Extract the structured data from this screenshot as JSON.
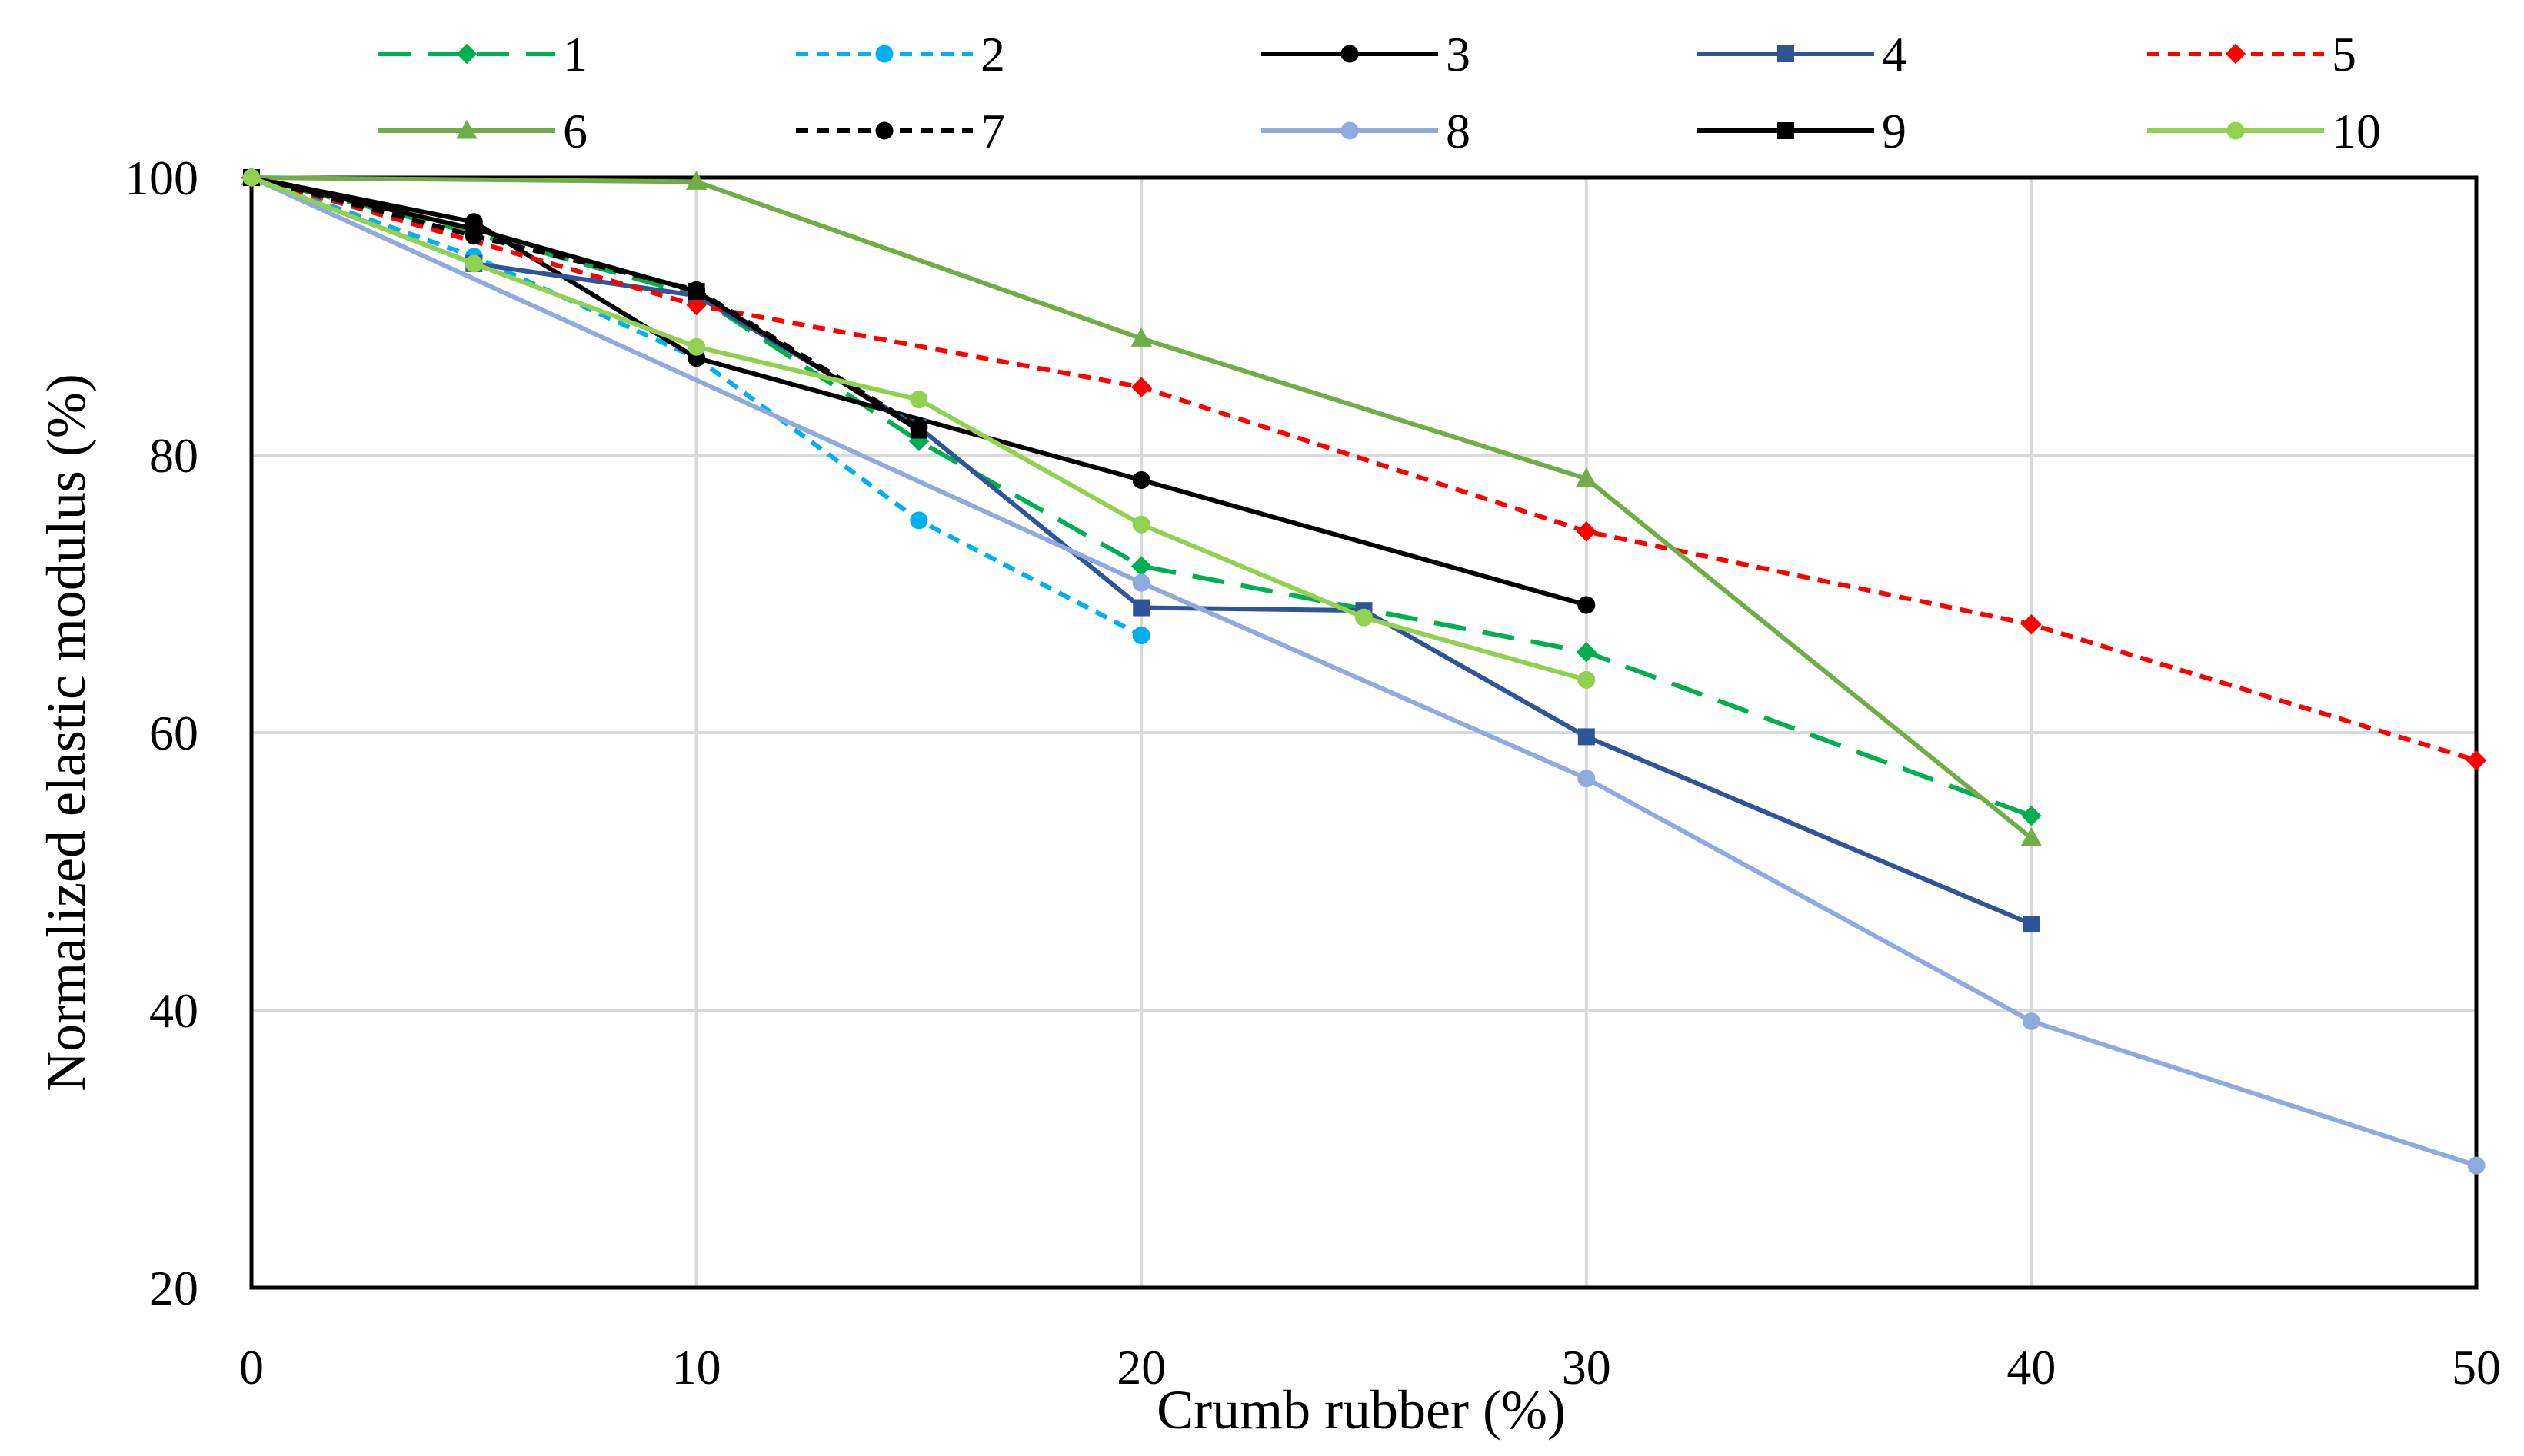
{
  "chart_data": {
    "type": "line",
    "title": "",
    "xlabel": "Crumb rubber (%)",
    "ylabel": "Normalized elastic modulus (%)",
    "xlim": [
      0,
      50
    ],
    "ylim": [
      20,
      100
    ],
    "xticks": [
      "0",
      "10",
      "20",
      "30",
      "40",
      "50"
    ],
    "yticks": [
      "20",
      "40",
      "60",
      "80",
      "100"
    ],
    "grid": "vertical",
    "legend_position": "top",
    "series": [
      {
        "name": "1",
        "color": "#00b050",
        "dash": "long-dash",
        "marker": "diamond",
        "x": [
          0,
          5,
          10,
          15,
          20,
          30,
          40
        ],
        "y": [
          100,
          96.0,
          91.5,
          81.0,
          72.0,
          65.8,
          54.0
        ]
      },
      {
        "name": "2",
        "color": "#00b0f0",
        "dash": "short-dash",
        "marker": "circle",
        "x": [
          0,
          5,
          10,
          15,
          20
        ],
        "y": [
          100,
          94.3,
          87.0,
          75.3,
          67.0
        ]
      },
      {
        "name": "3",
        "color": "#000000",
        "dash": "solid",
        "marker": "circle",
        "x": [
          0,
          5,
          10,
          20,
          30
        ],
        "y": [
          100,
          96.8,
          87.0,
          78.2,
          69.2
        ]
      },
      {
        "name": "4",
        "color": "#2f5597",
        "dash": "solid",
        "marker": "square",
        "x": [
          0,
          5,
          10,
          15,
          20,
          25,
          30,
          40
        ],
        "y": [
          100,
          93.8,
          91.5,
          82.0,
          69.0,
          68.8,
          59.7,
          46.2
        ]
      },
      {
        "name": "5",
        "color": "#ff0000",
        "dash": "short-dash",
        "marker": "diamond",
        "x": [
          0,
          10,
          20,
          30,
          40,
          50
        ],
        "y": [
          100,
          90.8,
          84.9,
          74.5,
          67.8,
          58.0
        ]
      },
      {
        "name": "6",
        "color": "#70ad47",
        "dash": "solid",
        "marker": "triangle",
        "x": [
          0,
          10,
          20,
          30,
          40
        ],
        "y": [
          100,
          99.7,
          88.4,
          78.3,
          52.4
        ]
      },
      {
        "name": "7",
        "color": "#000000",
        "dash": "short-dash",
        "marker": "circle",
        "x": [
          0,
          5,
          10,
          15
        ],
        "y": [
          100,
          95.8,
          91.9,
          82.0
        ]
      },
      {
        "name": "8",
        "color": "#8faadc",
        "dash": "solid",
        "marker": "circle",
        "x": [
          0,
          20,
          30,
          40,
          50
        ],
        "y": [
          100,
          70.8,
          56.7,
          39.2,
          28.8
        ]
      },
      {
        "name": "9",
        "color": "#000000",
        "dash": "solid",
        "marker": "square",
        "x": [
          0,
          5,
          10,
          15
        ],
        "y": [
          100,
          96.3,
          91.8,
          81.8
        ]
      },
      {
        "name": "10",
        "color": "#92d050",
        "dash": "solid",
        "marker": "circle",
        "x": [
          0,
          5,
          10,
          15,
          20,
          25,
          30
        ],
        "y": [
          100,
          93.8,
          87.8,
          84.0,
          75.0,
          68.3,
          63.8
        ]
      }
    ]
  }
}
